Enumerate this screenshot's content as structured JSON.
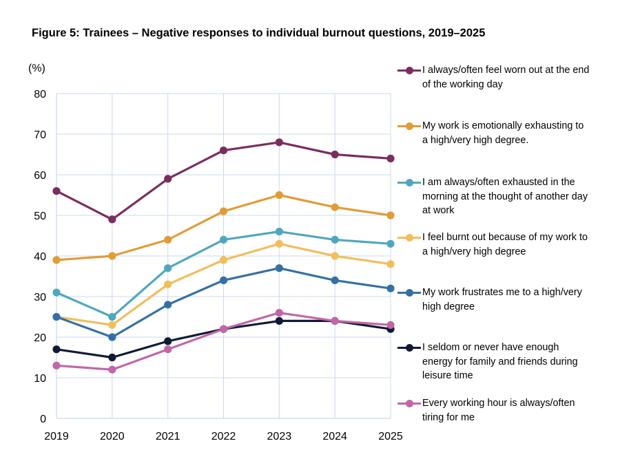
{
  "figure": {
    "title": "Figure 5: Trainees – Negative responses to individual burnout questions, 2019–2025",
    "y_unit": "(%)"
  },
  "chart_data": {
    "type": "line",
    "title": "Figure 5: Trainees – Negative responses to individual burnout questions, 2019–2025",
    "xlabel": "",
    "ylabel": "(%)",
    "x": [
      "2019",
      "2020",
      "2021",
      "2022",
      "2023",
      "2024",
      "2025"
    ],
    "ylim": [
      0,
      80
    ],
    "yticks": [
      "0",
      "10",
      "20",
      "30",
      "40",
      "50",
      "60",
      "70",
      "80"
    ],
    "grid": true,
    "legend_position": "right",
    "series": [
      {
        "name": "I always/often feel worn out at the end of the working day",
        "color": "#7b2d5e",
        "values": [
          56,
          49,
          59,
          66,
          68,
          65,
          64
        ]
      },
      {
        "name": "My work is emotionally exhausting to a high/very high degree.",
        "color": "#e39b35",
        "values": [
          39,
          40,
          44,
          51,
          55,
          52,
          50
        ]
      },
      {
        "name": "I am always/often exhausted in the morning at the thought of another day at work",
        "color": "#4fa7bf",
        "values": [
          31,
          25,
          37,
          44,
          46,
          44,
          43
        ]
      },
      {
        "name": "I feel burnt out because of my work to a high/very high degree",
        "color": "#f2bd5b",
        "values": [
          25,
          23,
          33,
          39,
          43,
          40,
          38
        ]
      },
      {
        "name": "My work frustrates me to a high/very high degree",
        "color": "#3570a4",
        "values": [
          25,
          20,
          28,
          34,
          37,
          34,
          32
        ]
      },
      {
        "name": "I seldom or never have enough energy for family and friends during leisure time",
        "color": "#101a33",
        "values": [
          17,
          15,
          19,
          22,
          24,
          24,
          22
        ]
      },
      {
        "name": "Every working hour is always/often tiring for me",
        "color": "#c266a8",
        "values": [
          13,
          12,
          17,
          22,
          26,
          24,
          23
        ]
      }
    ]
  },
  "legend": {
    "items": [
      {
        "text": "I always/often feel worn out at the end of the working day"
      },
      {
        "text": "My work is emotionally exhausting to a high/very high degree."
      },
      {
        "text": "I am always/often exhausted in the morning at the thought of another day at work"
      },
      {
        "text": "I feel burnt out because of my work to a high/very high degree"
      },
      {
        "text": "My work frustrates me to a high/very high degree"
      },
      {
        "text": "I seldom or never have enough energy for family and friends during leisure time"
      },
      {
        "text": "Every working hour is always/often tiring for me"
      }
    ]
  }
}
